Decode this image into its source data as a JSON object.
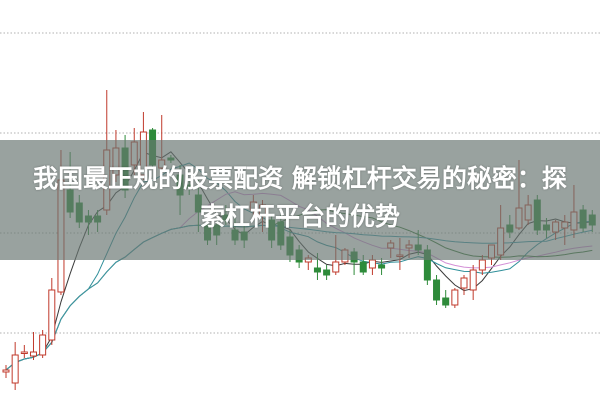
{
  "article": {
    "title_line1": "我国最正规的股票配资 解锁杠杆交易的秘密：探",
    "title_line2": "索杠杆平台的优势"
  },
  "colors": {
    "up": "#c0392b",
    "down": "#2e8b3a",
    "grid": "#b0b0b0",
    "overlay": "#69766f"
  },
  "chart_data": {
    "type": "candlestick",
    "title": "",
    "xlabel": "",
    "ylabel": "",
    "ylim": [
      0,
      400
    ],
    "grid": true,
    "moving_averages": [
      {
        "period": 5,
        "color": "#3a3a3a"
      },
      {
        "period": 10,
        "color": "#2f8f9a"
      },
      {
        "period": 20,
        "color": "#d38fd6"
      },
      {
        "period": 30,
        "color": "#3d7a3d"
      },
      {
        "period": 60,
        "color": "#3a9aa8"
      }
    ],
    "candles": [
      [
        28,
        30,
        35,
        22
      ],
      [
        17,
        45,
        58,
        10
      ],
      [
        48,
        48,
        55,
        42
      ],
      [
        44,
        48,
        68,
        40
      ],
      [
        45,
        65,
        70,
        42
      ],
      [
        60,
        110,
        122,
        55
      ],
      [
        108,
        220,
        250,
        105
      ],
      [
        210,
        188,
        248,
        182
      ],
      [
        197,
        178,
        205,
        172
      ],
      [
        184,
        178,
        190,
        165
      ],
      [
        184,
        178,
        190,
        168
      ],
      [
        190,
        250,
        310,
        185
      ],
      [
        225,
        252,
        270,
        218
      ],
      [
        252,
        210,
        265,
        202
      ],
      [
        235,
        258,
        272,
        225
      ],
      [
        225,
        268,
        288,
        220
      ],
      [
        270,
        235,
        272,
        232
      ],
      [
        232,
        240,
        285,
        228
      ],
      [
        242,
        240,
        245,
        237
      ],
      [
        225,
        205,
        235,
        185
      ],
      [
        215,
        212,
        220,
        205
      ],
      [
        205,
        188,
        220,
        168
      ],
      [
        175,
        160,
        178,
        155
      ],
      [
        175,
        165,
        180,
        155
      ],
      [
        185,
        180,
        195,
        175
      ],
      [
        170,
        160,
        185,
        155
      ],
      [
        168,
        160,
        175,
        152
      ],
      [
        190,
        198,
        205,
        185
      ],
      [
        185,
        195,
        200,
        168
      ],
      [
        180,
        160,
        185,
        152
      ],
      [
        178,
        155,
        185,
        150
      ],
      [
        163,
        145,
        170,
        138
      ],
      [
        150,
        138,
        155,
        132
      ],
      [
        138,
        142,
        145,
        130
      ],
      [
        132,
        128,
        147,
        120
      ],
      [
        130,
        125,
        135,
        120
      ],
      [
        128,
        138,
        165,
        125
      ],
      [
        138,
        150,
        152,
        135
      ],
      [
        148,
        138,
        152,
        125
      ],
      [
        138,
        128,
        145,
        125
      ],
      [
        132,
        140,
        145,
        125
      ],
      [
        135,
        132,
        142,
        125
      ],
      [
        152,
        157,
        160,
        142
      ],
      [
        145,
        145,
        162,
        130
      ],
      [
        152,
        155,
        160,
        142
      ],
      [
        155,
        150,
        170,
        145
      ],
      [
        150,
        120,
        155,
        115
      ],
      [
        120,
        100,
        125,
        95
      ],
      [
        102,
        95,
        110,
        92
      ],
      [
        95,
        110,
        112,
        92
      ],
      [
        112,
        122,
        125,
        105
      ],
      [
        110,
        130,
        135,
        100
      ],
      [
        130,
        140,
        145,
        125
      ],
      [
        142,
        155,
        155,
        135
      ],
      [
        145,
        172,
        195,
        140
      ],
      [
        175,
        168,
        185,
        162
      ],
      [
        172,
        192,
        240,
        170
      ],
      [
        180,
        195,
        205,
        175
      ],
      [
        200,
        170,
        205,
        165
      ],
      [
        175,
        170,
        182,
        162
      ],
      [
        168,
        178,
        180,
        160
      ],
      [
        172,
        178,
        185,
        155
      ],
      [
        170,
        188,
        215,
        162
      ],
      [
        190,
        172,
        195,
        168
      ],
      [
        185,
        175,
        190,
        168
      ]
    ]
  }
}
